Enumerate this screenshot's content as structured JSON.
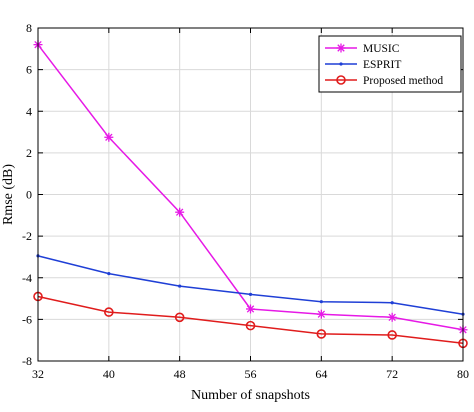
{
  "chart_data": {
    "type": "line",
    "xlabel": "Number of snapshots",
    "ylabel": "Rmse (dB)",
    "x": [
      32,
      40,
      48,
      56,
      64,
      72,
      80
    ],
    "xlim": [
      32,
      80
    ],
    "ylim": [
      -8,
      8
    ],
    "xticks": [
      32,
      40,
      48,
      56,
      64,
      72,
      80
    ],
    "yticks": [
      -8,
      -6,
      -4,
      -2,
      0,
      2,
      4,
      6,
      8
    ],
    "grid": true,
    "legend_position": "top-right",
    "series": [
      {
        "name": "MUSIC",
        "color": "#e619e6",
        "marker": "asterisk",
        "values": [
          7.2,
          2.75,
          -0.85,
          -5.5,
          -5.75,
          -5.9,
          -6.5
        ]
      },
      {
        "name": "ESPRIT",
        "color": "#1f3fd6",
        "marker": "dot",
        "values": [
          -2.95,
          -3.8,
          -4.4,
          -4.8,
          -5.15,
          -5.2,
          -5.75
        ]
      },
      {
        "name": "Proposed method",
        "color": "#e01c1c",
        "marker": "circle",
        "values": [
          -4.9,
          -5.65,
          -5.9,
          -6.3,
          -6.7,
          -6.75,
          -7.15
        ]
      }
    ]
  }
}
